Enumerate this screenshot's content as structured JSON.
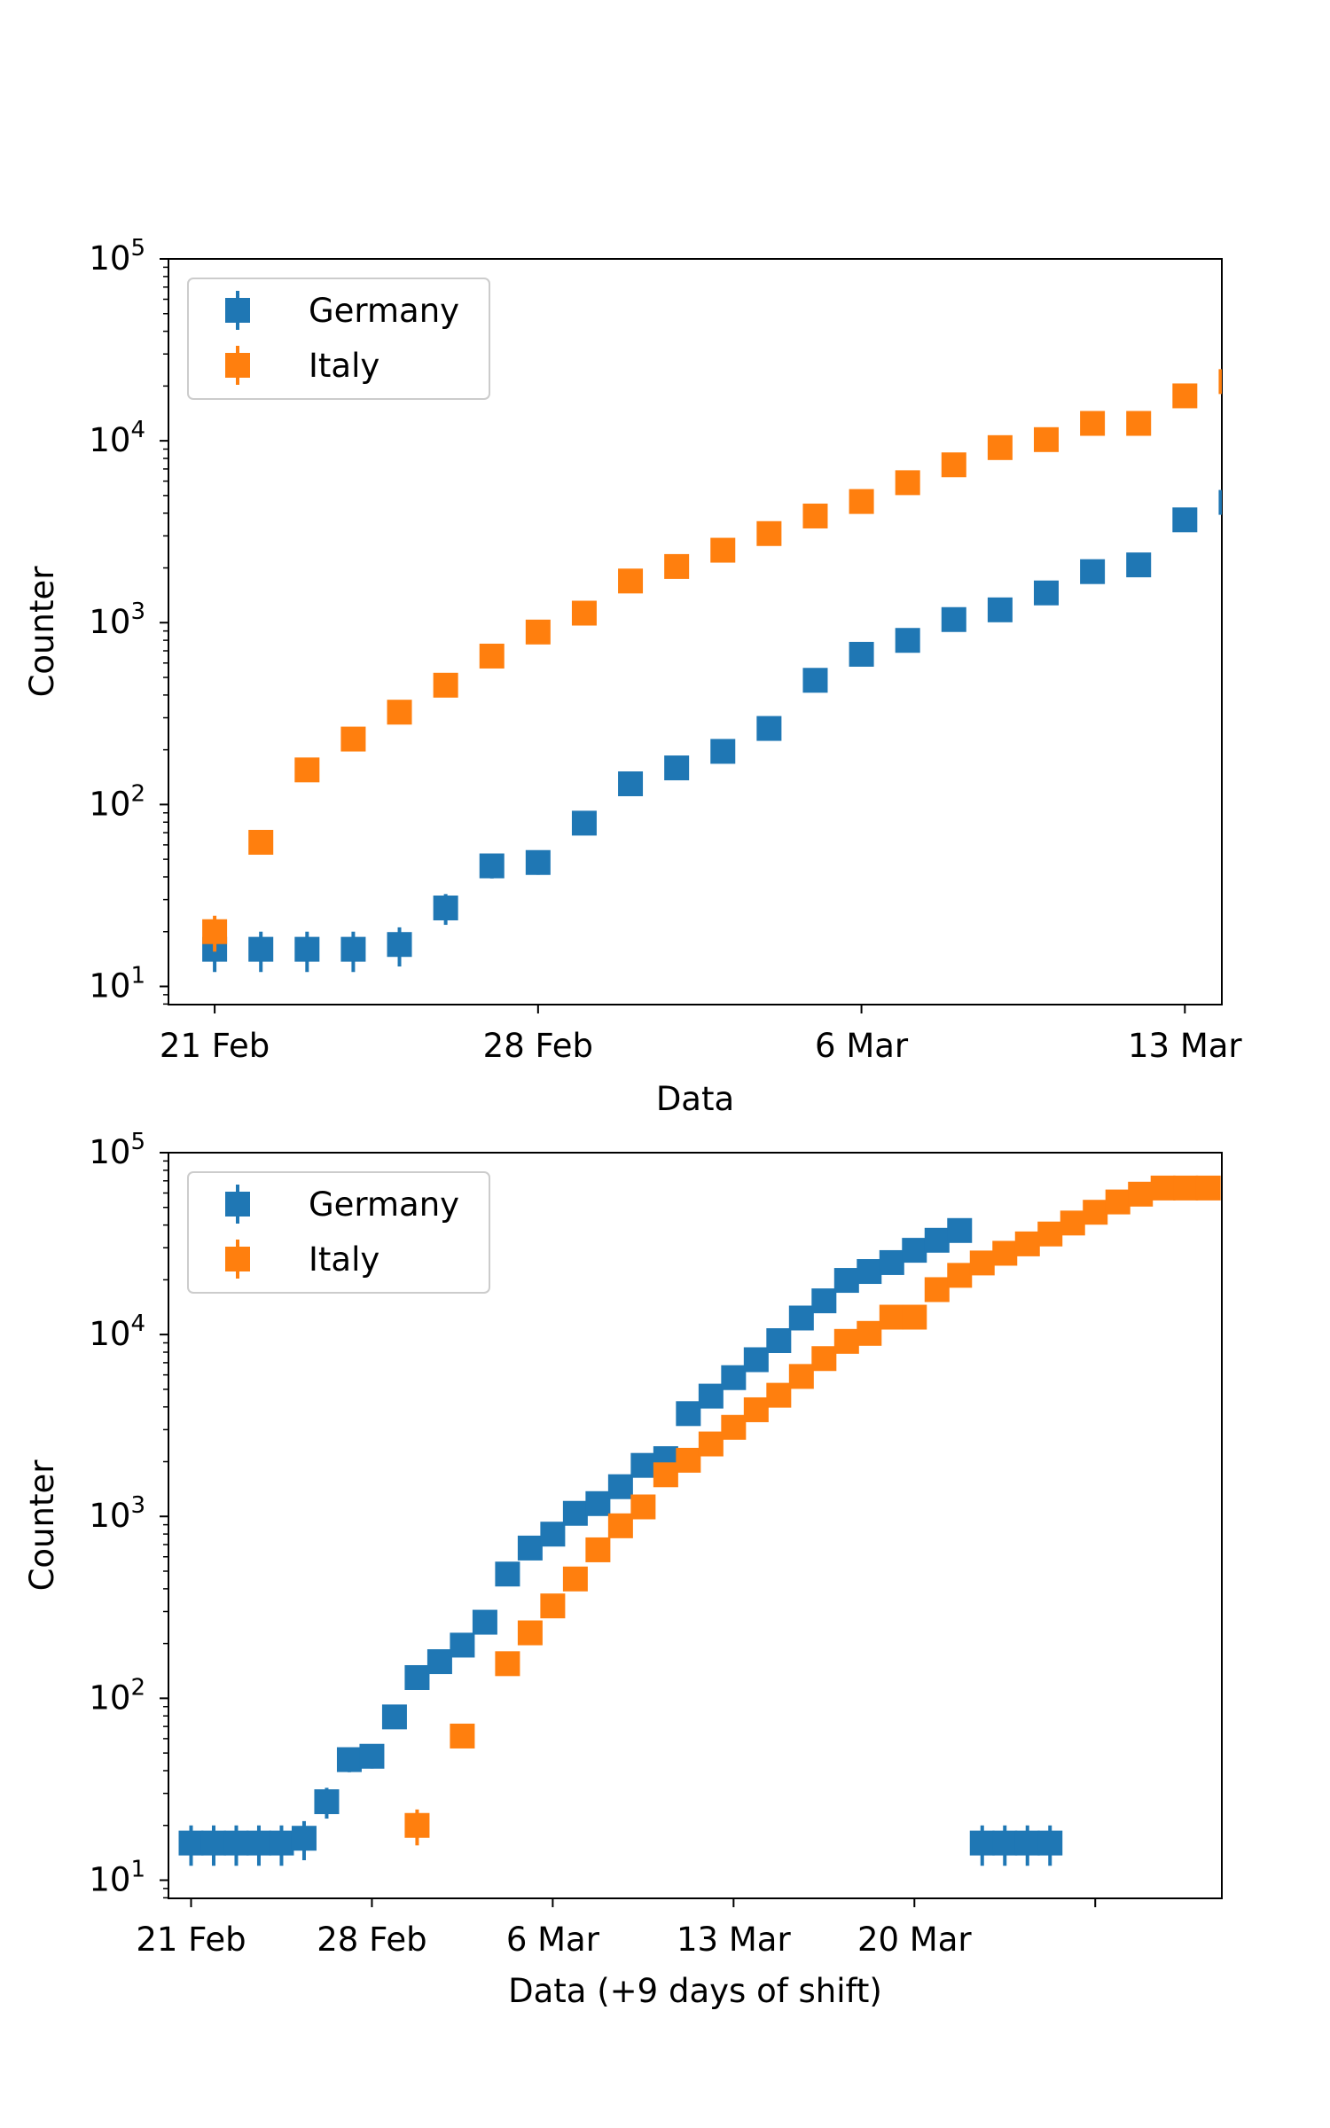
{
  "colors": {
    "germany": "#1f77b4",
    "italy": "#ff7f0e",
    "axis": "#000000",
    "legend_border": "#cccccc"
  },
  "chart_data": [
    {
      "type": "scatter",
      "title": "",
      "xlabel": "Data",
      "ylabel": "Counter",
      "yscale": "log",
      "ylim_exponent": [
        0.9,
        5
      ],
      "xlim_days": [
        -1,
        21.8
      ],
      "x_ticks": [
        {
          "day": 0,
          "label": "21 Feb"
        },
        {
          "day": 7,
          "label": "28 Feb"
        },
        {
          "day": 14,
          "label": "6 Mar"
        },
        {
          "day": 21,
          "label": "13 Mar"
        }
      ],
      "y_ticks": [
        {
          "base": "10",
          "exp": "1"
        },
        {
          "base": "10",
          "exp": "2"
        },
        {
          "base": "10",
          "exp": "3"
        },
        {
          "base": "10",
          "exp": "4"
        },
        {
          "base": "10",
          "exp": "5"
        }
      ],
      "grid": false,
      "legend": {
        "placement": "top-left",
        "entries": [
          "Germany",
          "Italy"
        ]
      },
      "series": [
        {
          "name": "Germany",
          "color_key": "germany",
          "x_days": [
            0,
            1,
            2,
            3,
            4,
            5,
            6,
            7,
            8,
            9,
            10,
            11,
            12,
            13,
            14,
            15,
            16,
            17,
            18,
            19,
            20,
            21,
            22
          ],
          "values": [
            16,
            16,
            16,
            16,
            17,
            27,
            46,
            48,
            79,
            130,
            159,
            196,
            262,
            482,
            670,
            799,
            1040,
            1176,
            1457,
            1908,
            2078,
            3675,
            4585
          ]
        },
        {
          "name": "Italy",
          "color_key": "italy",
          "x_days": [
            0,
            1,
            2,
            3,
            4,
            5,
            6,
            7,
            8,
            9,
            10,
            11,
            12,
            13,
            14,
            15,
            16,
            17,
            18,
            19,
            20,
            21,
            22
          ],
          "values": [
            20,
            62,
            155,
            229,
            322,
            453,
            655,
            888,
            1128,
            1694,
            2036,
            2502,
            3089,
            3858,
            4636,
            5883,
            7375,
            9172,
            10149,
            12462,
            12462,
            17660,
            21157
          ]
        }
      ]
    },
    {
      "type": "scatter",
      "title": "",
      "xlabel": "Data (+9 days of shift)",
      "ylabel": "Counter",
      "yscale": "log",
      "ylim_exponent": [
        0.9,
        5
      ],
      "xlim_days": [
        -0.5,
        22.8
      ],
      "x_ticks": [
        {
          "day": 0,
          "label": "21 Feb"
        },
        {
          "day": 4,
          "label": "28 Feb"
        },
        {
          "day": 8,
          "label": "6 Mar"
        },
        {
          "day": 12,
          "label": "13 Mar"
        },
        {
          "day": 16,
          "label": "20 Mar"
        },
        {
          "day": 20,
          "label": ""
        }
      ],
      "y_ticks": [
        {
          "base": "10",
          "exp": "1"
        },
        {
          "base": "10",
          "exp": "2"
        },
        {
          "base": "10",
          "exp": "3"
        },
        {
          "base": "10",
          "exp": "4"
        },
        {
          "base": "10",
          "exp": "5"
        }
      ],
      "grid": false,
      "legend": {
        "placement": "top-left",
        "entries": [
          "Germany",
          "Italy"
        ]
      },
      "series": [
        {
          "name": "Germany",
          "color_key": "germany",
          "x_days": [
            0,
            0.5,
            1,
            1.5,
            2,
            2.5,
            3,
            3.5,
            4,
            4.5,
            5,
            5.5,
            6,
            6.5,
            7,
            7.5,
            8,
            8.5,
            9,
            9.5,
            10,
            10.5,
            11,
            11.5,
            12,
            12.5,
            13,
            13.5,
            14,
            14.5,
            15,
            15.5,
            16,
            16.5,
            17,
            17.5,
            18,
            18.5,
            19
          ],
          "values": [
            16,
            16,
            16,
            16,
            16,
            17,
            27,
            46,
            48,
            79,
            130,
            159,
            196,
            262,
            482,
            670,
            799,
            1040,
            1176,
            1457,
            1908,
            2078,
            3675,
            4585,
            5795,
            7272,
            9257,
            12327,
            15320,
            19848,
            22213,
            24873,
            29056,
            32986,
            37323,
            16,
            16,
            16,
            16
          ]
        },
        {
          "name": "Italy",
          "color_key": "italy",
          "x_days": [
            5,
            6,
            7,
            7.5,
            8,
            8.5,
            9,
            9.5,
            10,
            10.5,
            11,
            11.5,
            12,
            12.5,
            13,
            13.5,
            14,
            14.5,
            15,
            15.5,
            16,
            16.5,
            17,
            17.5,
            18,
            18.5,
            19,
            19.5,
            20,
            20.5,
            21,
            21.5,
            22,
            22.5
          ],
          "values": [
            20,
            62,
            155,
            229,
            322,
            453,
            655,
            888,
            1128,
            1694,
            2036,
            2502,
            3089,
            3858,
            4636,
            5883,
            7375,
            9172,
            10149,
            12462,
            12462,
            17660,
            21157,
            24747,
            27980,
            31506,
            35713,
            41035,
            47021,
            53578,
            59138,
            63927,
            63927,
            63927
          ]
        }
      ]
    }
  ]
}
